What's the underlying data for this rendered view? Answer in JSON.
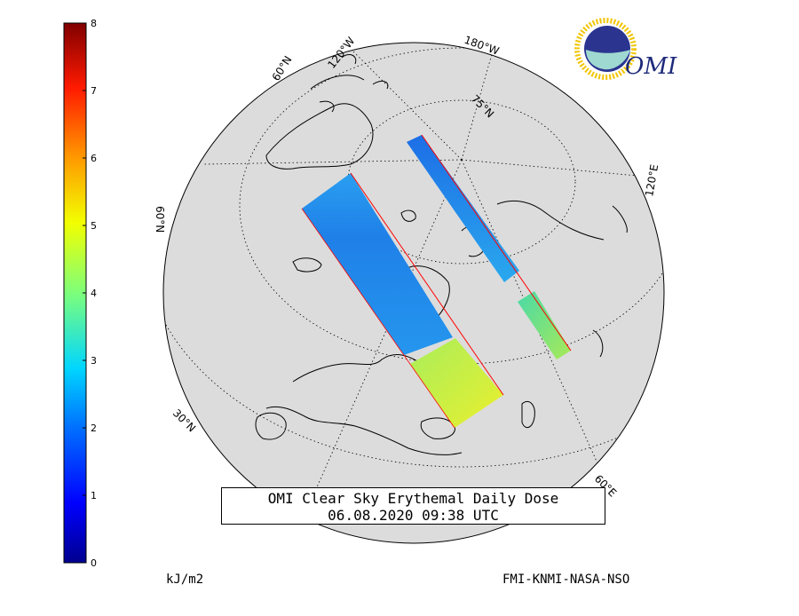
{
  "title": {
    "line1": "OMI Clear Sky Erythemal Daily Dose",
    "line2": "06.08.2020 09:38 UTC"
  },
  "colorbar": {
    "ticks": [
      "0",
      "1",
      "2",
      "3",
      "4",
      "5",
      "6",
      "7",
      "8"
    ],
    "min": 0,
    "max": 8,
    "unit_label": "kJ/m2"
  },
  "credit": "FMI-KNMI-NASA-NSO",
  "logo": {
    "text": "OMI"
  },
  "graticule_labels": [
    "180°W",
    "120°W",
    "60°N",
    "75°N",
    "60°N",
    "120°E",
    "30°N",
    "60°E"
  ],
  "colors": {
    "ocean": "#dcdcdc",
    "coast": "#000000",
    "swath_edge": "#ff0000",
    "swath_low": "#1e78e6",
    "swath_mid": "#3fd6c6",
    "swath_high": "#d8ee40"
  }
}
